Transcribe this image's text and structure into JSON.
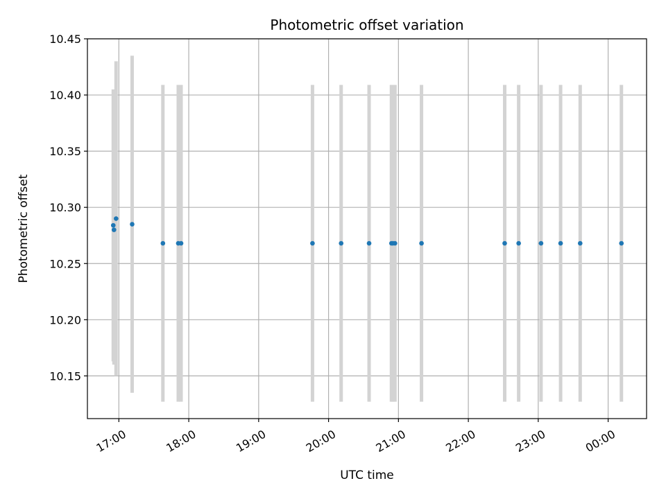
{
  "chart_data": {
    "type": "scatter",
    "title": "Photometric offset variation",
    "xlabel": "UTC time",
    "ylabel": "Photometric offset",
    "x_unit": "hours UTC (values past 24 wrap to next day)",
    "xlim": [
      16.55,
      24.55
    ],
    "ylim": [
      10.112,
      10.45
    ],
    "grid": true,
    "x_ticks": [
      {
        "value": 17,
        "label": "17:00"
      },
      {
        "value": 18,
        "label": "18:00"
      },
      {
        "value": 19,
        "label": "19:00"
      },
      {
        "value": 20,
        "label": "20:00"
      },
      {
        "value": 21,
        "label": "21:00"
      },
      {
        "value": 22,
        "label": "22:00"
      },
      {
        "value": 23,
        "label": "23:00"
      },
      {
        "value": 24,
        "label": "00:00"
      }
    ],
    "y_ticks": [
      {
        "value": 10.15,
        "label": "10.15"
      },
      {
        "value": 10.2,
        "label": "10.20"
      },
      {
        "value": 10.25,
        "label": "10.25"
      },
      {
        "value": 10.3,
        "label": "10.30"
      },
      {
        "value": 10.35,
        "label": "10.35"
      },
      {
        "value": 10.4,
        "label": "10.40"
      },
      {
        "value": 10.45,
        "label": "10.45"
      }
    ],
    "point_color": "#1f77b4",
    "errorbar_color": "#d3d3d3",
    "points": [
      {
        "x": 16.92,
        "y": 10.284,
        "err": 0.121
      },
      {
        "x": 16.93,
        "y": 10.28,
        "err": 0.12
      },
      {
        "x": 16.96,
        "y": 10.29,
        "err": 0.14
      },
      {
        "x": 17.19,
        "y": 10.285,
        "err": 0.15
      },
      {
        "x": 17.63,
        "y": 10.268,
        "err": 0.141
      },
      {
        "x": 17.85,
        "y": 10.268,
        "err": 0.141
      },
      {
        "x": 17.89,
        "y": 10.268,
        "err": 0.141
      },
      {
        "x": 19.77,
        "y": 10.268,
        "err": 0.141
      },
      {
        "x": 20.18,
        "y": 10.268,
        "err": 0.141
      },
      {
        "x": 20.58,
        "y": 10.268,
        "err": 0.141
      },
      {
        "x": 20.9,
        "y": 10.268,
        "err": 0.141
      },
      {
        "x": 20.92,
        "y": 10.268,
        "err": 0.141
      },
      {
        "x": 20.95,
        "y": 10.268,
        "err": 0.141
      },
      {
        "x": 21.33,
        "y": 10.268,
        "err": 0.141
      },
      {
        "x": 22.52,
        "y": 10.268,
        "err": 0.141
      },
      {
        "x": 22.72,
        "y": 10.268,
        "err": 0.141
      },
      {
        "x": 23.04,
        "y": 10.268,
        "err": 0.141
      },
      {
        "x": 23.32,
        "y": 10.268,
        "err": 0.141
      },
      {
        "x": 23.6,
        "y": 10.268,
        "err": 0.141
      },
      {
        "x": 24.19,
        "y": 10.268,
        "err": 0.141
      }
    ]
  }
}
